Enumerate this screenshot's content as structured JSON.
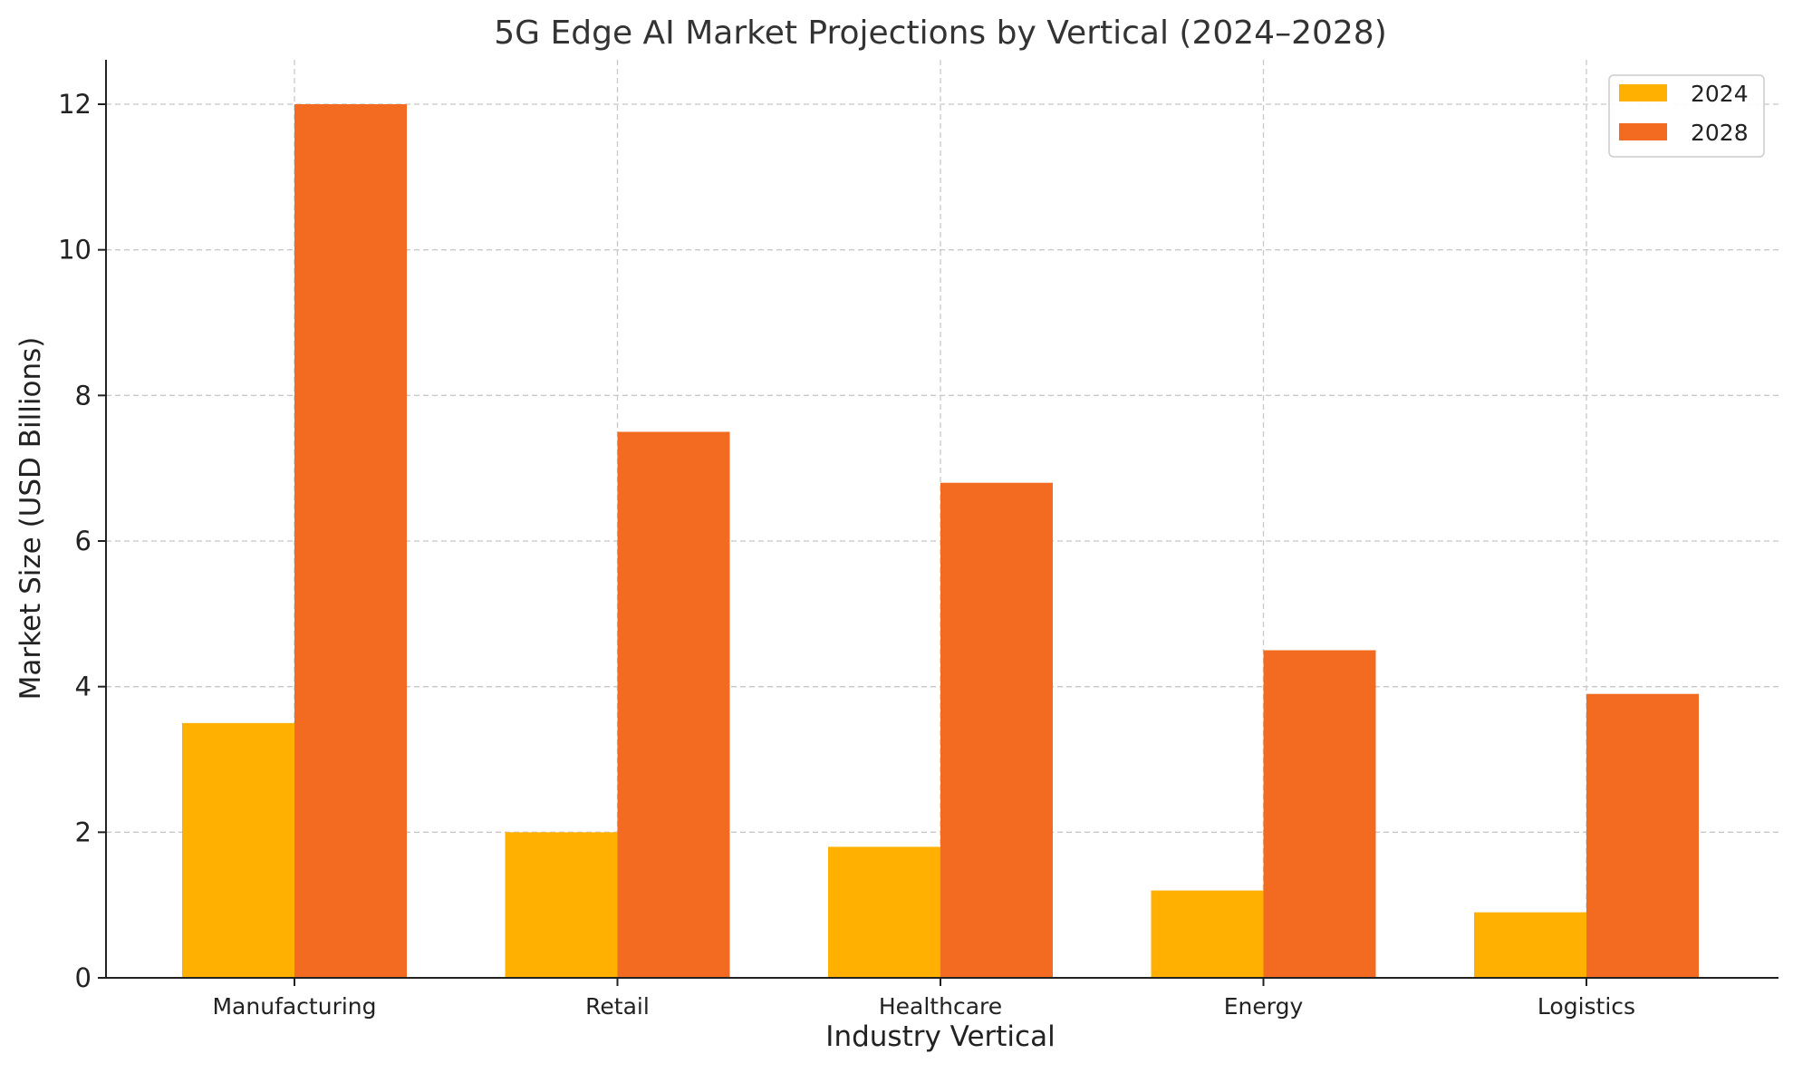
{
  "chart_data": {
    "type": "bar",
    "title": "5G Edge AI Market Projections by Vertical (2024–2028)",
    "xlabel": "Industry Vertical",
    "ylabel": "Market Size (USD Billions)",
    "categories": [
      "Manufacturing",
      "Retail",
      "Healthcare",
      "Energy",
      "Logistics"
    ],
    "series": [
      {
        "name": "2024",
        "color": "#ffb000",
        "values": [
          3.5,
          2.0,
          1.8,
          1.2,
          0.9
        ]
      },
      {
        "name": "2028",
        "color": "#f26b21",
        "values": [
          12.0,
          7.5,
          6.8,
          4.5,
          3.9
        ]
      }
    ],
    "ylim": [
      0,
      12.6
    ],
    "yticks": [
      "0",
      "2",
      "4",
      "6",
      "8",
      "10",
      "12"
    ],
    "grid": true,
    "legend": "top-right"
  }
}
